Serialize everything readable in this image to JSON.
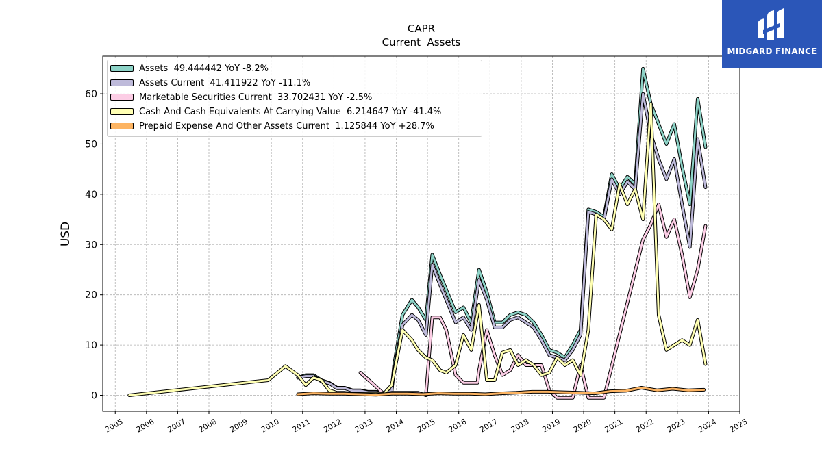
{
  "chart_data": {
    "type": "line",
    "title": "CAPR",
    "subtitle": "Current  Assets",
    "ylabel": "USD",
    "xlabel": "",
    "xlim": [
      2004.6,
      2025.0
    ],
    "ylim": [
      -3.2,
      67.5
    ],
    "x_ticks": [
      2005,
      2006,
      2007,
      2008,
      2009,
      2010,
      2011,
      2012,
      2013,
      2014,
      2015,
      2016,
      2017,
      2018,
      2019,
      2020,
      2021,
      2022,
      2023,
      2024,
      2025
    ],
    "y_ticks": [
      0,
      10,
      20,
      30,
      40,
      50,
      60
    ],
    "grid": true,
    "legend_position": "top-left",
    "series": [
      {
        "name": "Assets",
        "legend": "Assets  49.444442 YoY -8.2%",
        "color": "#8dd3c7",
        "points": [
          [
            2010.85,
            3.5
          ],
          [
            2011.1,
            4
          ],
          [
            2011.35,
            4
          ],
          [
            2011.6,
            3
          ],
          [
            2011.85,
            2.5
          ],
          [
            2012.1,
            1.5
          ],
          [
            2012.35,
            1.5
          ],
          [
            2012.6,
            1
          ],
          [
            2012.85,
            1
          ],
          [
            2013.1,
            0.7
          ],
          [
            2013.35,
            0.7
          ],
          [
            2013.6,
            0.5
          ],
          [
            2013.85,
            1
          ],
          [
            2013.93,
            6
          ],
          [
            2014.2,
            16
          ],
          [
            2014.5,
            19
          ],
          [
            2014.7,
            17.5
          ],
          [
            2014.95,
            15
          ],
          [
            2015.15,
            28
          ],
          [
            2015.4,
            24
          ],
          [
            2015.9,
            16.5
          ],
          [
            2016.15,
            17.5
          ],
          [
            2016.4,
            14.5
          ],
          [
            2016.65,
            25
          ],
          [
            2016.9,
            20.5
          ],
          [
            2017.15,
            14.5
          ],
          [
            2017.4,
            14.5
          ],
          [
            2017.65,
            16
          ],
          [
            2017.9,
            16.5
          ],
          [
            2018.15,
            16
          ],
          [
            2018.4,
            14.5
          ],
          [
            2018.65,
            12
          ],
          [
            2018.9,
            9
          ],
          [
            2019.15,
            8.5
          ],
          [
            2019.4,
            7.5
          ],
          [
            2019.65,
            10
          ],
          [
            2019.9,
            13
          ],
          [
            2020.15,
            37
          ],
          [
            2020.4,
            36.5
          ],
          [
            2020.65,
            35.5
          ],
          [
            2020.9,
            44
          ],
          [
            2021.15,
            41
          ],
          [
            2021.4,
            43.5
          ],
          [
            2021.65,
            42
          ],
          [
            2021.9,
            65
          ],
          [
            2022.15,
            58
          ],
          [
            2022.4,
            54
          ],
          [
            2022.65,
            50
          ],
          [
            2022.9,
            54
          ],
          [
            2023.15,
            45.5
          ],
          [
            2023.4,
            38
          ],
          [
            2023.65,
            59
          ],
          [
            2023.9,
            49.4
          ]
        ]
      },
      {
        "name": "Assets Current",
        "legend": "Assets Current  41.411922 YoY -11.1%",
        "color": "#bebada",
        "points": [
          [
            2010.85,
            3.5
          ],
          [
            2011.1,
            3.8
          ],
          [
            2011.35,
            3.8
          ],
          [
            2011.6,
            2.8
          ],
          [
            2011.85,
            2.4
          ],
          [
            2012.1,
            1.4
          ],
          [
            2012.35,
            1.4
          ],
          [
            2012.6,
            0.9
          ],
          [
            2012.85,
            0.9
          ],
          [
            2013.1,
            0.6
          ],
          [
            2013.35,
            0.6
          ],
          [
            2013.6,
            0.4
          ],
          [
            2013.85,
            0.9
          ],
          [
            2013.93,
            5
          ],
          [
            2014.2,
            14
          ],
          [
            2014.5,
            16
          ],
          [
            2014.7,
            15
          ],
          [
            2014.95,
            12
          ],
          [
            2015.15,
            26
          ],
          [
            2015.4,
            22
          ],
          [
            2015.9,
            14.5
          ],
          [
            2016.15,
            15.5
          ],
          [
            2016.4,
            13
          ],
          [
            2016.65,
            23
          ],
          [
            2016.9,
            19
          ],
          [
            2017.15,
            13.5
          ],
          [
            2017.4,
            13.5
          ],
          [
            2017.65,
            15
          ],
          [
            2017.9,
            15.5
          ],
          [
            2018.15,
            14.5
          ],
          [
            2018.4,
            13.5
          ],
          [
            2018.65,
            11
          ],
          [
            2018.9,
            8
          ],
          [
            2019.15,
            7.5
          ],
          [
            2019.4,
            7
          ],
          [
            2019.65,
            9
          ],
          [
            2019.9,
            12
          ],
          [
            2020.15,
            36.5
          ],
          [
            2020.4,
            36
          ],
          [
            2020.65,
            35
          ],
          [
            2020.9,
            43
          ],
          [
            2021.15,
            40
          ],
          [
            2021.4,
            42.5
          ],
          [
            2021.65,
            41
          ],
          [
            2021.9,
            60
          ],
          [
            2022.15,
            52
          ],
          [
            2022.4,
            47
          ],
          [
            2022.65,
            43
          ],
          [
            2022.9,
            47
          ],
          [
            2023.15,
            38
          ],
          [
            2023.4,
            29.5
          ],
          [
            2023.65,
            51
          ],
          [
            2023.9,
            41.4
          ]
        ]
      },
      {
        "name": "Marketable Securities Current",
        "legend": "Marketable Securities Current  33.702431 YoY -2.5%",
        "color": "#fccde5",
        "points": [
          [
            2012.85,
            4.5
          ],
          [
            2013.3,
            2
          ],
          [
            2013.6,
            0.3
          ],
          [
            2013.85,
            0.5
          ],
          [
            2014.2,
            0.5
          ],
          [
            2014.5,
            0.5
          ],
          [
            2014.7,
            0.5
          ],
          [
            2014.95,
            0
          ],
          [
            2015.15,
            15.5
          ],
          [
            2015.4,
            15.5
          ],
          [
            2015.6,
            13
          ],
          [
            2015.9,
            4
          ],
          [
            2016.15,
            2.5
          ],
          [
            2016.4,
            2.5
          ],
          [
            2016.6,
            2.5
          ],
          [
            2016.65,
            5
          ],
          [
            2016.9,
            13
          ],
          [
            2017.15,
            8
          ],
          [
            2017.4,
            4
          ],
          [
            2017.65,
            5
          ],
          [
            2017.9,
            8
          ],
          [
            2018.15,
            6
          ],
          [
            2018.4,
            6
          ],
          [
            2018.65,
            6
          ],
          [
            2018.9,
            1
          ],
          [
            2019.15,
            -0.5
          ],
          [
            2019.4,
            -0.5
          ],
          [
            2019.65,
            -0.5
          ],
          [
            2019.9,
            6
          ],
          [
            2020.15,
            -0.5
          ],
          [
            2020.4,
            -0.5
          ],
          [
            2020.65,
            -0.5
          ],
          [
            2021.9,
            31
          ],
          [
            2022.15,
            34
          ],
          [
            2022.4,
            38
          ],
          [
            2022.65,
            31.5
          ],
          [
            2022.9,
            35
          ],
          [
            2023.15,
            28
          ],
          [
            2023.4,
            19.5
          ],
          [
            2023.65,
            25
          ],
          [
            2023.9,
            33.7
          ]
        ]
      },
      {
        "name": "Cash And Cash Equivalents At Carrying Value",
        "legend": "Cash And Cash Equivalents At Carrying Value  6.214647 YoY -41.4%",
        "color": "#ffffb3",
        "points": [
          [
            2005.45,
            0
          ],
          [
            2009.9,
            3
          ],
          [
            2010.45,
            5.8
          ],
          [
            2010.85,
            4
          ],
          [
            2011.1,
            2
          ],
          [
            2011.35,
            3.5
          ],
          [
            2011.6,
            3
          ],
          [
            2011.85,
            1
          ],
          [
            2012.1,
            0.5
          ],
          [
            2012.35,
            0.5
          ],
          [
            2012.6,
            0.3
          ],
          [
            2012.85,
            0.3
          ],
          [
            2013.1,
            0.3
          ],
          [
            2013.35,
            0.3
          ],
          [
            2013.6,
            0.3
          ],
          [
            2013.85,
            2
          ],
          [
            2014.2,
            13
          ],
          [
            2014.5,
            11
          ],
          [
            2014.7,
            9
          ],
          [
            2014.95,
            7.5
          ],
          [
            2015.15,
            7
          ],
          [
            2015.4,
            5
          ],
          [
            2015.6,
            4.5
          ],
          [
            2015.9,
            6
          ],
          [
            2016.15,
            12
          ],
          [
            2016.4,
            9
          ],
          [
            2016.65,
            18
          ],
          [
            2016.9,
            3
          ],
          [
            2017.15,
            3
          ],
          [
            2017.4,
            8.5
          ],
          [
            2017.65,
            9
          ],
          [
            2017.9,
            6
          ],
          [
            2018.15,
            7
          ],
          [
            2018.4,
            6
          ],
          [
            2018.65,
            4
          ],
          [
            2018.9,
            4.5
          ],
          [
            2019.15,
            7.5
          ],
          [
            2019.4,
            6
          ],
          [
            2019.65,
            7
          ],
          [
            2019.9,
            4
          ],
          [
            2020.15,
            13
          ],
          [
            2020.4,
            36
          ],
          [
            2020.65,
            35
          ],
          [
            2020.9,
            33
          ],
          [
            2021.15,
            42
          ],
          [
            2021.4,
            38
          ],
          [
            2021.65,
            41
          ],
          [
            2021.9,
            35
          ],
          [
            2022.15,
            58
          ],
          [
            2022.4,
            16
          ],
          [
            2022.65,
            9
          ],
          [
            2022.9,
            10
          ],
          [
            2023.15,
            11
          ],
          [
            2023.4,
            10
          ],
          [
            2023.65,
            15
          ],
          [
            2023.9,
            6.2
          ]
        ]
      },
      {
        "name": "Prepaid Expense And Other Assets Current",
        "legend": "Prepaid Expense And Other Assets Current  1.125844 YoY +28.7%",
        "color": "#fdb462",
        "points": [
          [
            2010.85,
            0.2
          ],
          [
            2011.35,
            0.4
          ],
          [
            2011.85,
            0.3
          ],
          [
            2012.35,
            0.3
          ],
          [
            2012.85,
            0.2
          ],
          [
            2013.35,
            0.1
          ],
          [
            2013.85,
            0.3
          ],
          [
            2014.35,
            0.3
          ],
          [
            2014.85,
            0.2
          ],
          [
            2015.35,
            0.4
          ],
          [
            2015.85,
            0.3
          ],
          [
            2016.35,
            0.3
          ],
          [
            2016.85,
            0.2
          ],
          [
            2017.35,
            0.4
          ],
          [
            2017.85,
            0.5
          ],
          [
            2018.35,
            0.7
          ],
          [
            2018.85,
            0.7
          ],
          [
            2019.35,
            0.6
          ],
          [
            2019.85,
            0.5
          ],
          [
            2020.35,
            0.4
          ],
          [
            2020.85,
            0.8
          ],
          [
            2021.35,
            0.9
          ],
          [
            2021.85,
            1.5
          ],
          [
            2022.35,
            1
          ],
          [
            2022.85,
            1.3
          ],
          [
            2023.35,
            1
          ],
          [
            2023.85,
            1.1
          ]
        ]
      }
    ]
  },
  "brand": {
    "name": "MIDGARD FINANCE",
    "bg_color": "#2b56b8"
  }
}
